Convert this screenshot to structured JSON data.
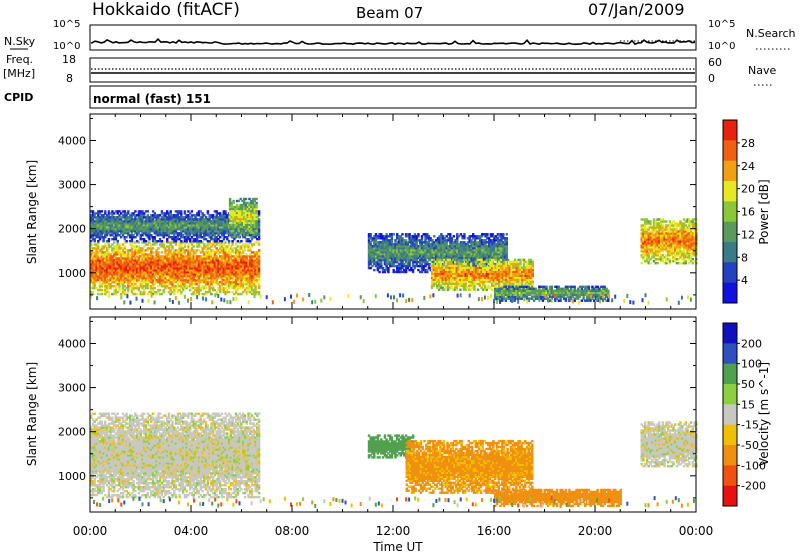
{
  "header": {
    "station": "Hokkaido (fitACF)",
    "beam": "Beam 07",
    "date": "07/Jan/2009"
  },
  "strips": {
    "nsky_label": "N.Sky",
    "nsearch_label": "N.Search",
    "nsky_ticks": [
      "10^5",
      "10^0"
    ],
    "nsearch_ticks": [
      "10^5",
      "10^0"
    ],
    "freq_label": "Freq.",
    "freq_unit": "[MHz]",
    "freq_ticks": [
      "18",
      "8"
    ],
    "nave_label": "Nave",
    "nave_ticks": [
      "60",
      "0"
    ],
    "cpid_label": "CPID",
    "cpid_text": "normal (fast) 151"
  },
  "colors": {
    "power_scale": [
      "#1010e0",
      "#2540c0",
      "#3a7a8a",
      "#5a9a5a",
      "#8ac83a",
      "#e8e820",
      "#f0a010",
      "#f06010",
      "#e82010"
    ],
    "velocity_scale": [
      "#1010c0",
      "#3050c0",
      "#50a050",
      "#8ad040",
      "#c8c8c0",
      "#f0c000",
      "#f09010",
      "#f05010",
      "#e81010"
    ],
    "ground_scatter": "#c8c8c0"
  },
  "chart_data": [
    {
      "type": "heatmap",
      "name": "power",
      "ylabel": "Slant Range [km]",
      "xlabel": "",
      "xlim": [
        0,
        24
      ],
      "ylim": [
        180,
        4600
      ],
      "x_ticks": [
        "00:00",
        "04:00",
        "08:00",
        "12:00",
        "16:00",
        "20:00",
        "00:00"
      ],
      "y_ticks": [
        1000,
        2000,
        3000,
        4000
      ],
      "colorbar": {
        "label": "Power [dB]",
        "ticks": [
          4,
          8,
          12,
          16,
          20,
          24,
          28
        ]
      },
      "echo_regions": [
        {
          "t": [
            0.0,
            6.7
          ],
          "range": [
            500,
            1700
          ],
          "value_dB": 26
        },
        {
          "t": [
            0.0,
            6.7
          ],
          "range": [
            1700,
            2400
          ],
          "value_dB": 12
        },
        {
          "t": [
            5.5,
            6.6
          ],
          "range": [
            1800,
            2700
          ],
          "value_dB": 18
        },
        {
          "t": [
            11.0,
            16.5
          ],
          "range": [
            1000,
            1900
          ],
          "value_dB": 12
        },
        {
          "t": [
            13.5,
            17.5
          ],
          "range": [
            600,
            1300
          ],
          "value_dB": 24
        },
        {
          "t": [
            16.0,
            20.5
          ],
          "range": [
            350,
            700
          ],
          "value_dB": 14
        },
        {
          "t": [
            21.8,
            24.0
          ],
          "range": [
            1200,
            2200
          ],
          "value_dB": 24
        }
      ]
    },
    {
      "type": "heatmap",
      "name": "velocity",
      "ylabel": "Slant Range [km]",
      "xlabel": "Time UT",
      "xlim": [
        0,
        24
      ],
      "ylim": [
        180,
        4600
      ],
      "x_ticks": [
        "00:00",
        "04:00",
        "08:00",
        "12:00",
        "16:00",
        "20:00",
        "00:00"
      ],
      "y_ticks": [
        1000,
        2000,
        3000,
        4000
      ],
      "colorbar": {
        "label": "Velocity [m s^-1]",
        "ticks": [
          200,
          100,
          50,
          15,
          -15,
          -50,
          -100,
          -200
        ]
      },
      "echo_regions": [
        {
          "t": [
            0.0,
            6.7
          ],
          "range": [
            500,
            2400
          ],
          "value_ms": 0
        },
        {
          "t": [
            11.0,
            12.8
          ],
          "range": [
            1400,
            1900
          ],
          "value_ms": 80
        },
        {
          "t": [
            12.5,
            17.5
          ],
          "range": [
            600,
            1800
          ],
          "value_ms": -60
        },
        {
          "t": [
            16.0,
            21.0
          ],
          "range": [
            300,
            700
          ],
          "value_ms": -70
        },
        {
          "t": [
            21.8,
            24.0
          ],
          "range": [
            1200,
            2200
          ],
          "value_ms": 0
        }
      ]
    }
  ]
}
